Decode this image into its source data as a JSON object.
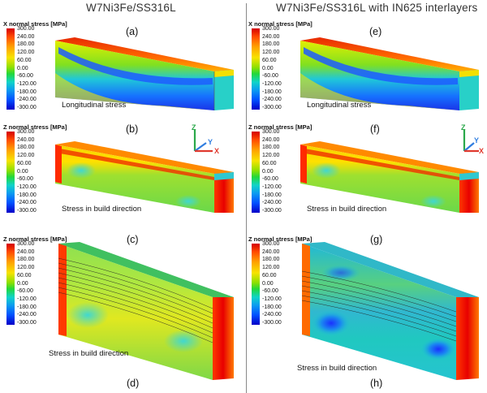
{
  "titles": {
    "left": "W7Ni3Fe/SS316L",
    "right": "W7Ni3Fe/SS316L with IN625 interlayers"
  },
  "colorbar_ticks": [
    "300.00",
    "240.00",
    "180.00",
    "120.00",
    "60.00",
    "0.00",
    "-60.00",
    "-120.00",
    "-180.00",
    "-240.00",
    "-300.00"
  ],
  "panels": {
    "a": {
      "label": "(a)",
      "legend_title": "X normal stress [MPa]",
      "caption": "Longitudinal stress"
    },
    "b": {
      "label": "(b)",
      "legend_title": "Z normal stress [MPa]",
      "caption": "Stress in build direction"
    },
    "c": {
      "label": "(c)",
      "legend_title": "Z normal stress [MPa]",
      "caption": "Stress in build direction"
    },
    "d": {
      "label": "(d)"
    },
    "e": {
      "label": "(e)",
      "legend_title": "X normal stress [MPa]",
      "caption": "Longitudinal stress"
    },
    "f": {
      "label": "(f)",
      "legend_title": "Z normal stress [MPa]",
      "caption": "Stress in build direction"
    },
    "g": {
      "label": "(g)",
      "legend_title": "Z normal stress [MPa]",
      "caption": "Stress in build direction"
    },
    "h": {
      "label": "(h)"
    }
  },
  "axes": {
    "z": "Z",
    "y": "Y",
    "x": "X"
  },
  "colors": {
    "axis_z": "#2aa84a",
    "axis_y": "#2f7de0",
    "axis_x": "#e03a2f"
  }
}
